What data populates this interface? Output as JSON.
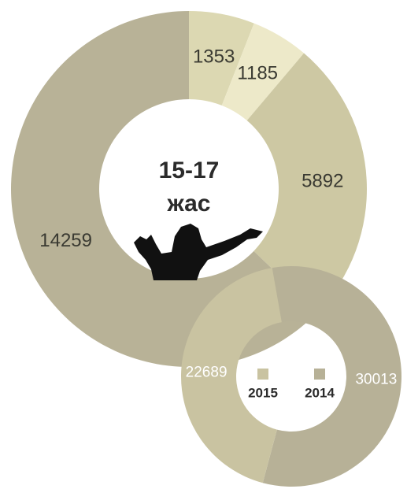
{
  "chart_data": [
    {
      "type": "donut",
      "center_label": [
        "15-17",
        "жас"
      ],
      "values": [
        1353,
        1185,
        5892,
        14259
      ],
      "colors": [
        "#dcd8b2",
        "#ede9c9",
        "#cdc8a3",
        "#b8b297"
      ]
    },
    {
      "type": "donut",
      "categories": [
        "2015",
        "2014"
      ],
      "values": [
        22689,
        30013
      ],
      "colors": [
        "#c9c3a1",
        "#b7b197"
      ]
    }
  ]
}
